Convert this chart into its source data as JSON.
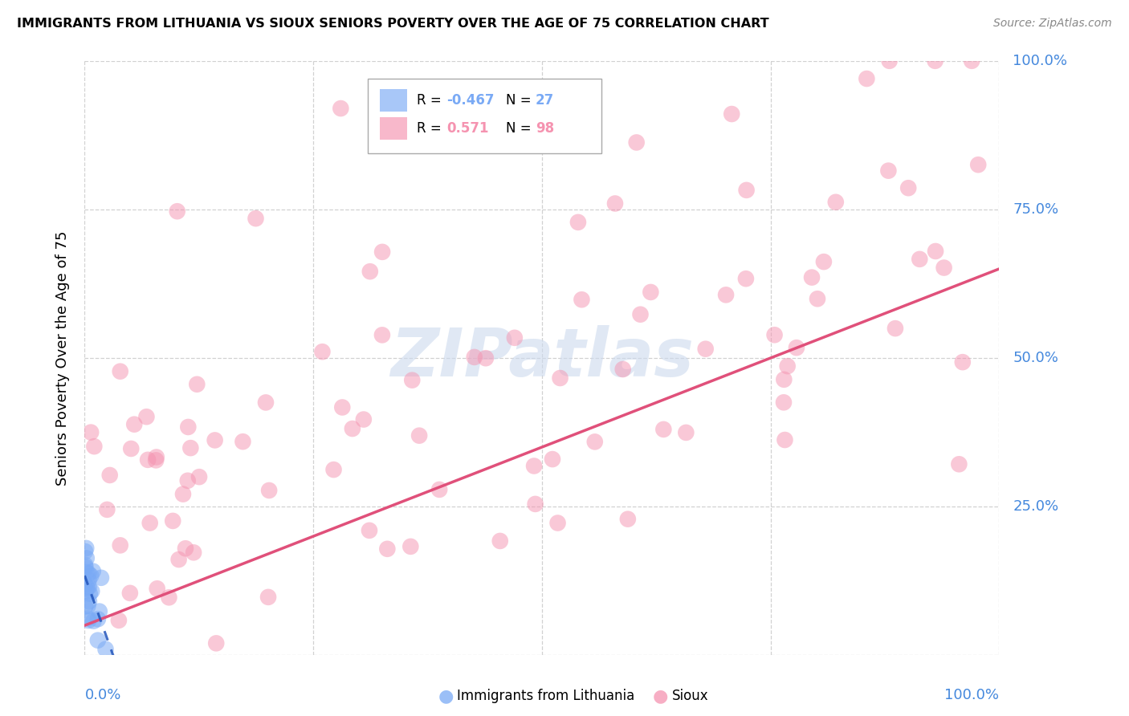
{
  "title": "IMMIGRANTS FROM LITHUANIA VS SIOUX SENIORS POVERTY OVER THE AGE OF 75 CORRELATION CHART",
  "source": "Source: ZipAtlas.com",
  "ylabel": "Seniors Poverty Over the Age of 75",
  "legend_labels": [
    "Immigrants from Lithuania",
    "Sioux"
  ],
  "blue_R": -0.467,
  "blue_N": 27,
  "pink_R": 0.571,
  "pink_N": 98,
  "blue_color": "#7aaaf5",
  "pink_color": "#f593b0",
  "blue_line_color": "#2255bb",
  "pink_line_color": "#e0507a",
  "watermark_color": "#ccdaee",
  "background_color": "#ffffff",
  "grid_color": "#cccccc",
  "tick_label_color": "#4488dd",
  "xlim": [
    0.0,
    1.0
  ],
  "ylim": [
    0.0,
    1.0
  ]
}
